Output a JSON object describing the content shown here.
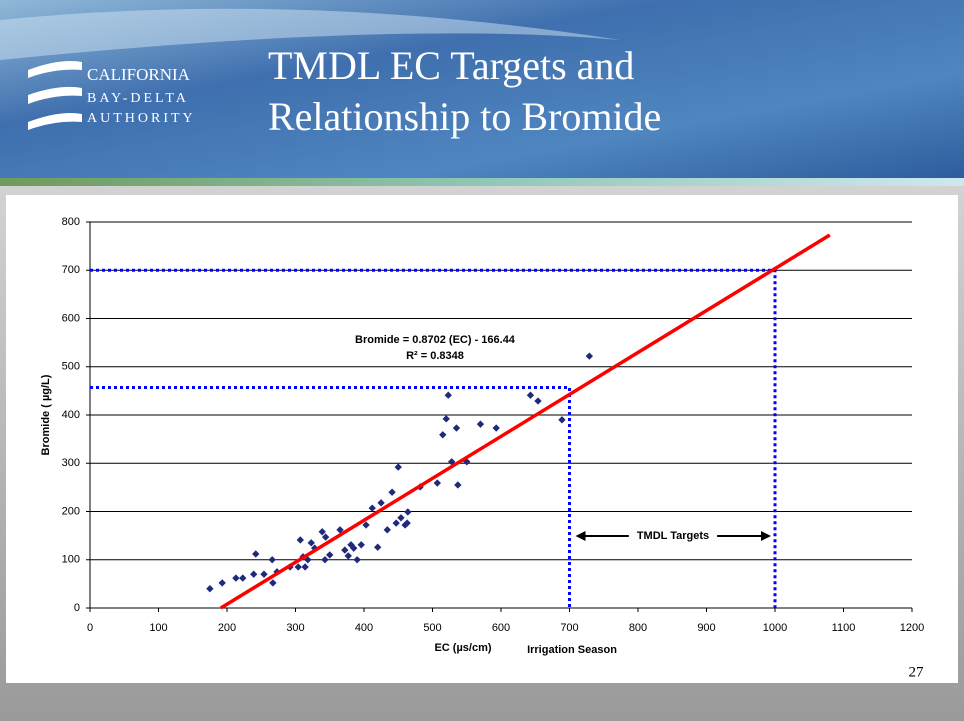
{
  "slide": {
    "logo_lines": [
      "CALIFORNIA",
      "BAY-DELTA",
      "AUTHORITY"
    ],
    "title_lines": [
      "TMDL EC Targets and",
      "Relationship to Bromide"
    ],
    "page_number": "27"
  },
  "chart_data": {
    "type": "scatter",
    "x_label": "EC (µs/cm)",
    "y_label": "Bromide ( µg/L)",
    "x_note": "Irrigation Season",
    "equation": "Bromide = 0.8702 (EC) - 166.44",
    "r_squared": "R² = 0.8348",
    "target_label": "TMDL Targets",
    "color": "#1f2a7a",
    "trend_color": "#ff0000",
    "target_color": "#0000ff",
    "grid": true,
    "x": [
      175,
      193,
      213,
      223,
      239,
      242,
      254,
      266,
      267,
      273,
      292,
      304,
      307,
      311,
      314,
      318,
      323,
      328,
      339,
      343,
      344,
      350,
      365,
      372,
      377,
      381,
      385,
      390,
      396,
      403,
      412,
      420,
      425,
      434,
      441,
      447,
      450,
      454,
      460,
      464,
      463,
      482,
      507,
      515,
      520,
      523,
      528,
      535,
      537,
      550,
      570,
      593,
      643,
      654,
      689,
      729
    ],
    "y": [
      40,
      52,
      62,
      62,
      70,
      112,
      70,
      100,
      52,
      75,
      85,
      85,
      141,
      106,
      85,
      100,
      135,
      124,
      158,
      100,
      147,
      110,
      162,
      120,
      108,
      131,
      124,
      100,
      131,
      172,
      207,
      126,
      218,
      162,
      240,
      176,
      292,
      187,
      172,
      199,
      176,
      251,
      259,
      359,
      392,
      441,
      303,
      373,
      255,
      303,
      381,
      373,
      441,
      429,
      390,
      522
    ],
    "trendline": {
      "x": [
        191,
        1080
      ],
      "y": [
        0,
        773
      ]
    },
    "targets": [
      {
        "ec": 700,
        "bromide": 457
      },
      {
        "ec": 1000,
        "bromide": 700
      }
    ],
    "xlim": [
      0,
      1200
    ],
    "xticks": [
      0,
      100,
      200,
      300,
      400,
      500,
      600,
      700,
      800,
      900,
      1000,
      1100,
      1200
    ],
    "ylim": [
      0,
      800
    ],
    "yticks": [
      0,
      100,
      200,
      300,
      400,
      500,
      600,
      700,
      800
    ]
  }
}
